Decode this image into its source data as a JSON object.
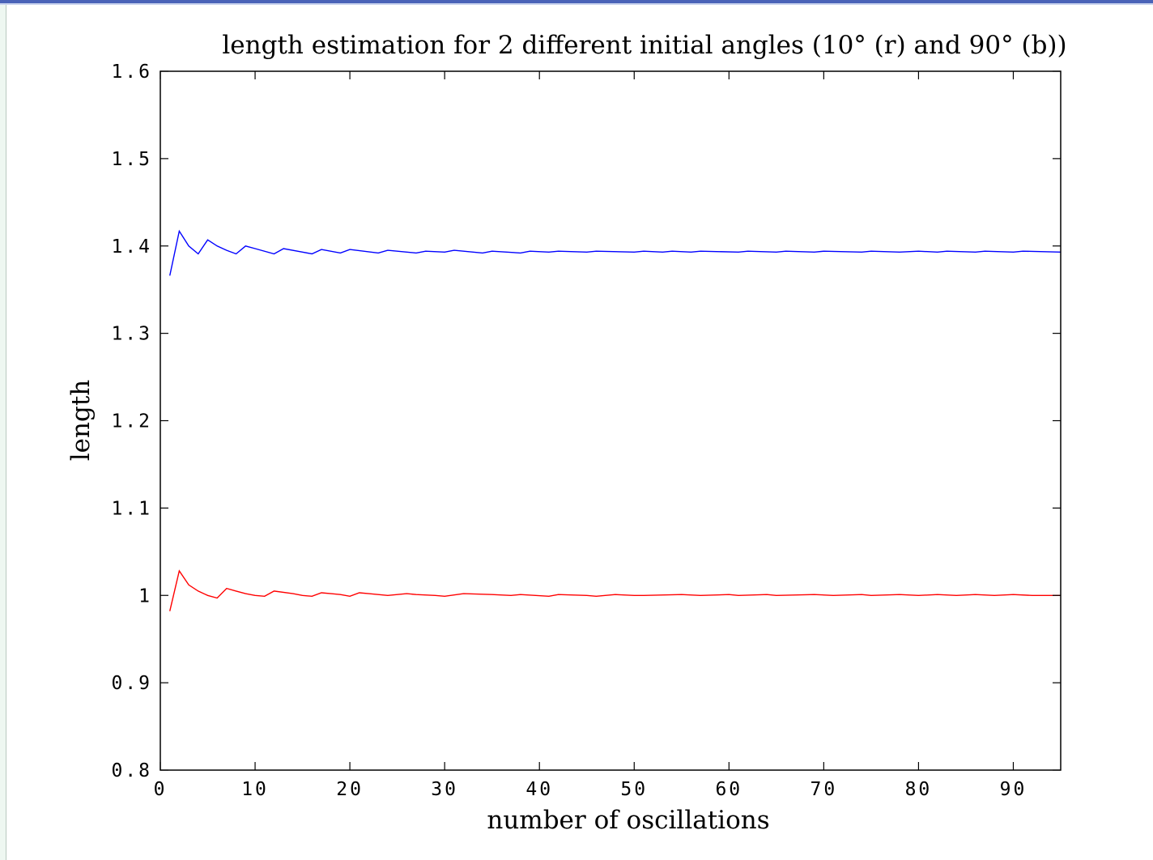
{
  "chart_data": {
    "type": "line",
    "title": "length estimation for 2 different initial angles (10° (r) and 90° (b))",
    "xlabel": "number of oscillations",
    "ylabel": "length",
    "xlim": [
      0,
      95
    ],
    "ylim": [
      0.8,
      1.6
    ],
    "xticks": [
      0,
      10,
      20,
      30,
      40,
      50,
      60,
      70,
      80,
      90
    ],
    "xtick_labels": [
      "0",
      "10",
      "20",
      "30",
      "40",
      "50",
      "60",
      "70",
      "80",
      "90"
    ],
    "yticks": [
      0.8,
      0.9,
      1.0,
      1.1,
      1.2,
      1.3,
      1.4,
      1.5,
      1.6
    ],
    "ytick_labels": [
      "0.8",
      "0.9",
      "1",
      "1.1",
      "1.2",
      "1.3",
      "1.4",
      "1.5",
      "1.6"
    ],
    "grid": false,
    "series": [
      {
        "color": "#0000ff",
        "x": [
          1,
          2,
          3,
          4,
          5,
          6,
          7,
          8,
          9,
          10,
          12,
          13,
          15,
          16,
          17,
          19,
          20,
          23,
          24,
          27,
          28,
          30,
          31,
          34,
          35,
          38,
          39,
          41,
          42,
          45,
          46,
          50,
          51,
          53,
          54,
          56,
          57,
          61,
          62,
          65,
          66,
          69,
          70,
          74,
          75,
          78,
          80,
          82,
          83,
          86,
          87,
          90,
          91,
          95
        ],
        "y": [
          1.366,
          1.417,
          1.4,
          1.391,
          1.407,
          1.4,
          1.395,
          1.391,
          1.4,
          1.397,
          1.391,
          1.397,
          1.393,
          1.391,
          1.396,
          1.392,
          1.396,
          1.392,
          1.395,
          1.392,
          1.394,
          1.393,
          1.395,
          1.392,
          1.394,
          1.392,
          1.394,
          1.393,
          1.394,
          1.393,
          1.394,
          1.393,
          1.394,
          1.393,
          1.394,
          1.393,
          1.394,
          1.393,
          1.394,
          1.393,
          1.394,
          1.393,
          1.394,
          1.393,
          1.394,
          1.393,
          1.394,
          1.393,
          1.394,
          1.393,
          1.394,
          1.393,
          1.394,
          1.393
        ]
      },
      {
        "color": "#ff0000",
        "x": [
          1,
          2,
          3,
          4,
          5,
          6,
          7,
          8,
          9,
          10,
          11,
          12,
          14,
          15,
          16,
          17,
          18,
          19,
          20,
          21,
          22,
          23,
          24,
          26,
          27,
          29,
          30,
          32,
          35,
          37,
          38,
          41,
          42,
          45,
          46,
          48,
          50,
          51,
          55,
          57,
          60,
          61,
          64,
          65,
          69,
          71,
          74,
          75,
          78,
          80,
          82,
          84,
          86,
          88,
          90,
          92,
          95
        ],
        "y": [
          0.982,
          1.028,
          1.012,
          1.005,
          1.0,
          0.997,
          1.008,
          1.005,
          1.002,
          1.0,
          0.999,
          1.005,
          1.002,
          1.0,
          0.999,
          1.003,
          1.002,
          1.001,
          0.999,
          1.003,
          1.002,
          1.001,
          1.0,
          1.002,
          1.001,
          1.0,
          0.999,
          1.002,
          1.001,
          1.0,
          1.001,
          0.999,
          1.001,
          1.0,
          0.999,
          1.001,
          1.0,
          1.0,
          1.001,
          1.0,
          1.001,
          1.0,
          1.001,
          1.0,
          1.001,
          1.0,
          1.001,
          1.0,
          1.001,
          1.0,
          1.001,
          1.0,
          1.001,
          1.0,
          1.001,
          1.0,
          1.0
        ]
      }
    ]
  }
}
